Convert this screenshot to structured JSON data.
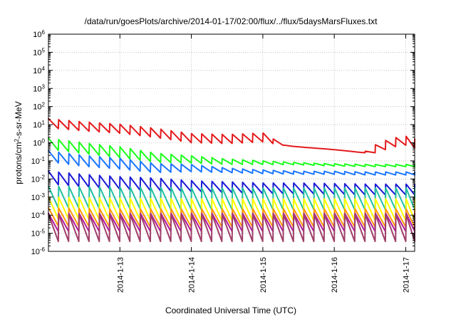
{
  "chart_data": {
    "type": "line",
    "title": "/data/run/goesPlots/archive/2014-01-17/02:00/flux/../flux/5daysMarsFluxes.txt",
    "xlabel": "Coordinated Universal Time (UTC)",
    "ylabel": {
      "pre": "protons/cm",
      "sup": "2",
      "post": "-s-sr-MeV"
    },
    "x_axis": {
      "type": "time",
      "range": [
        "2014-01-12T02:00",
        "2014-01-17T03:00"
      ],
      "ticks": [
        "2014-1-13",
        "2014-1-14",
        "2014-1-15",
        "2014-1-16",
        "2014-1-17"
      ],
      "tick_positions": [
        1,
        2,
        3,
        4,
        5
      ]
    },
    "y_axis": {
      "scale": "log",
      "range": [
        1e-06,
        1000000.0
      ],
      "ticks": [
        {
          "base": "10",
          "exp": "-6",
          "value": -6
        },
        {
          "base": "10",
          "exp": "-5",
          "value": -5
        },
        {
          "base": "10",
          "exp": "-4",
          "value": -4
        },
        {
          "base": "10",
          "exp": "-3",
          "value": -3
        },
        {
          "base": "10",
          "exp": "-2",
          "value": -2
        },
        {
          "base": "10",
          "exp": "-1",
          "value": -1
        },
        {
          "base": "10",
          "exp": "0",
          "value": 0
        },
        {
          "base": "10",
          "exp": "1",
          "value": 1
        },
        {
          "base": "10",
          "exp": "2",
          "value": 2
        },
        {
          "base": "10",
          "exp": "3",
          "value": 3
        },
        {
          "base": "10",
          "exp": "4",
          "value": 4
        },
        {
          "base": "10",
          "exp": "5",
          "value": 5
        },
        {
          "base": "10",
          "exp": "6",
          "value": 6
        }
      ]
    },
    "grid": true,
    "series": [
      {
        "color": "#e41a1c",
        "trend": [
          [
            0,
            12
          ],
          [
            0.5,
            8
          ],
          [
            1,
            6
          ],
          [
            1.5,
            3.5
          ],
          [
            2,
            1.8
          ],
          [
            2.5,
            1.6
          ],
          [
            2.8,
            1.8
          ],
          [
            3,
            2
          ],
          [
            3.3,
            0.7
          ],
          [
            3.6,
            0.55
          ],
          [
            3.9,
            0.45
          ],
          [
            4.2,
            0.35
          ],
          [
            4.4,
            0.28
          ],
          [
            4.6,
            0.5
          ],
          [
            4.8,
            1
          ],
          [
            5.0,
            1.3
          ],
          [
            5.1,
            0.9
          ]
        ],
        "amp_dec": [
          0.25,
          0.25,
          0.25,
          0.25,
          0.25,
          0.25,
          0.25,
          0.25,
          0,
          0,
          0,
          0,
          0,
          0.25,
          0.25,
          0.25,
          0.25
        ],
        "period": 0.143
      },
      {
        "color": "#1aff1a",
        "trend": [
          [
            0,
            0.9
          ],
          [
            0.5,
            0.5
          ],
          [
            1,
            0.3
          ],
          [
            1.5,
            0.15
          ],
          [
            2,
            0.12
          ],
          [
            2.5,
            0.09
          ],
          [
            3,
            0.08
          ],
          [
            3.5,
            0.07
          ],
          [
            4,
            0.06
          ],
          [
            4.5,
            0.055
          ],
          [
            5.1,
            0.055
          ]
        ],
        "amp_dec": [
          0.3,
          0.3,
          0.3,
          0.25,
          0.2,
          0.15,
          0.1,
          0.06,
          0.06,
          0.06,
          0.06
        ],
        "period": 0.143
      },
      {
        "color": "#1a75ff",
        "trend": [
          [
            0,
            0.18
          ],
          [
            0.5,
            0.1
          ],
          [
            1,
            0.07
          ],
          [
            1.5,
            0.04
          ],
          [
            2,
            0.04
          ],
          [
            2.5,
            0.03
          ],
          [
            3,
            0.025
          ],
          [
            3.5,
            0.022
          ],
          [
            4,
            0.022
          ],
          [
            4.5,
            0.02
          ],
          [
            5.1,
            0.02
          ]
        ],
        "amp_dec": [
          0.3,
          0.3,
          0.3,
          0.25,
          0.2,
          0.12,
          0.1,
          0.08,
          0.08,
          0.08,
          0.08
        ],
        "period": 0.143
      },
      {
        "color": "#1a1ad6",
        "trend": [
          [
            0,
            0.012
          ],
          [
            0.5,
            0.008
          ],
          [
            1,
            0.006
          ],
          [
            1.5,
            0.005
          ],
          [
            2,
            0.004
          ],
          [
            2.5,
            0.0035
          ],
          [
            3,
            0.003
          ],
          [
            3.5,
            0.003
          ],
          [
            4,
            0.0028
          ],
          [
            4.5,
            0.0026
          ],
          [
            5.1,
            0.0026
          ]
        ],
        "amp_dec": [
          0.35,
          0.35,
          0.35,
          0.35,
          0.3,
          0.3,
          0.3,
          0.3,
          0.3,
          0.3,
          0.3
        ],
        "period": 0.143
      },
      {
        "color": "#20c0a0",
        "trend": [
          [
            0,
            0.001
          ],
          [
            1,
            0.0009
          ],
          [
            2,
            0.0008
          ],
          [
            3,
            0.0008
          ],
          [
            4,
            0.0008
          ],
          [
            5.1,
            0.0008
          ]
        ],
        "amp_dec": [
          0.6,
          0.6,
          0.6,
          0.6,
          0.6,
          0.6
        ],
        "period": 0.143
      },
      {
        "color": "#ffff00",
        "trend": [
          [
            0,
            0.00025
          ],
          [
            1,
            0.00022
          ],
          [
            2,
            0.0002
          ],
          [
            3,
            0.0002
          ],
          [
            4,
            0.0002
          ],
          [
            5.1,
            0.0002
          ]
        ],
        "amp_dec": [
          0.6,
          0.6,
          0.6,
          0.6,
          0.6,
          0.6
        ],
        "period": 0.143
      },
      {
        "color": "#ff9900",
        "trend": [
          [
            0,
            8e-05
          ],
          [
            1,
            7e-05
          ],
          [
            2,
            7e-05
          ],
          [
            3,
            7e-05
          ],
          [
            4,
            7e-05
          ],
          [
            5.1,
            7e-05
          ]
        ],
        "amp_dec": [
          0.5,
          0.5,
          0.5,
          0.5,
          0.5,
          0.5
        ],
        "period": 0.143
      },
      {
        "color": "#b01aa0",
        "trend": [
          [
            0,
            4e-05
          ],
          [
            1,
            4e-05
          ],
          [
            2,
            4e-05
          ],
          [
            3,
            4e-05
          ],
          [
            4,
            4e-05
          ],
          [
            5.1,
            4e-05
          ]
        ],
        "amp_dec": [
          0.5,
          0.5,
          0.5,
          0.5,
          0.5,
          0.5
        ],
        "period": 0.143
      },
      {
        "color": "#a0406a",
        "trend": [
          [
            0,
            2e-05
          ],
          [
            1,
            2e-05
          ],
          [
            2,
            2e-05
          ],
          [
            3,
            2e-05
          ],
          [
            4,
            2e-05
          ],
          [
            5.1,
            2e-05
          ]
        ],
        "amp_dec": [
          0.75,
          0.75,
          0.75,
          0.75,
          0.75,
          0.75
        ],
        "period": 0.143
      }
    ]
  }
}
